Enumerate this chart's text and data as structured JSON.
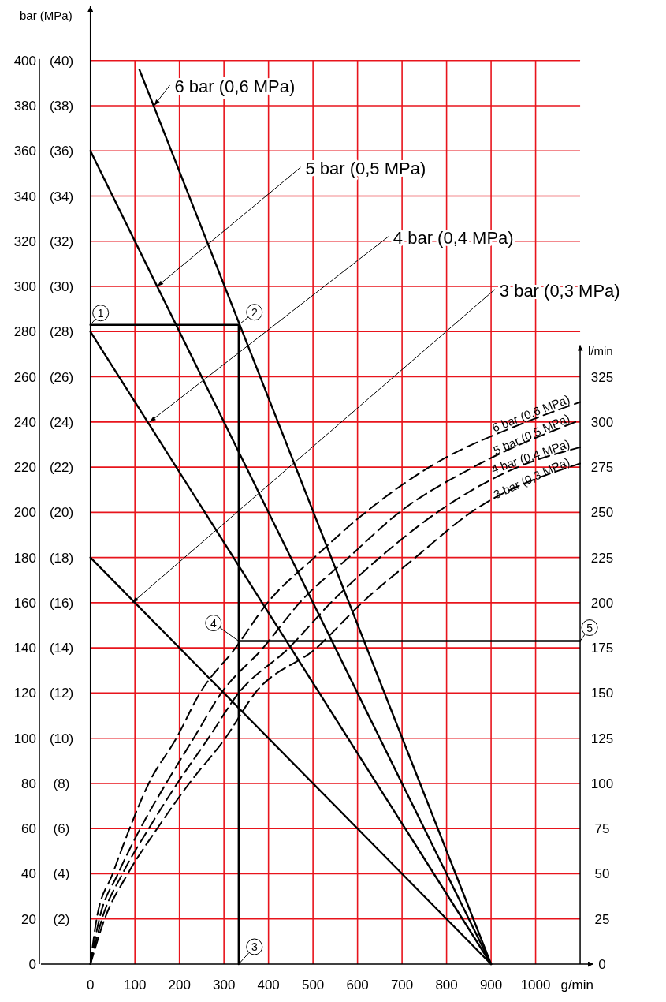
{
  "chart_data": {
    "type": "line",
    "xlabel": "g/min",
    "ylabel": "bar (MPa)",
    "y2label": "l/min",
    "xlim": [
      -111,
      1130
    ],
    "xticks": [
      0,
      100,
      200,
      300,
      400,
      500,
      600,
      700,
      800,
      900,
      1000
    ],
    "ylim": [
      0,
      424
    ],
    "yticks": [
      0,
      20,
      40,
      60,
      80,
      100,
      120,
      140,
      160,
      180,
      200,
      220,
      240,
      260,
      280,
      300,
      320,
      340,
      360,
      380,
      400
    ],
    "y3lim": [
      0,
      42.4
    ],
    "y3ticks": [
      {
        "value": 2,
        "label": "(2)"
      },
      {
        "value": 4,
        "label": "(4)"
      },
      {
        "value": 6,
        "label": "(6)"
      },
      {
        "value": 8,
        "label": "(8)"
      },
      {
        "value": 10,
        "label": "(10)"
      },
      {
        "value": 12,
        "label": "(12)"
      },
      {
        "value": 14,
        "label": "(14)"
      },
      {
        "value": 16,
        "label": "(16)"
      },
      {
        "value": 18,
        "label": "(18)"
      },
      {
        "value": 20,
        "label": "(20)"
      },
      {
        "value": 22,
        "label": "(22)"
      },
      {
        "value": 24,
        "label": "(24)"
      },
      {
        "value": 26,
        "label": "(26)"
      },
      {
        "value": 28,
        "label": "(28)"
      },
      {
        "value": 30,
        "label": "(30)"
      },
      {
        "value": 32,
        "label": "(32)"
      },
      {
        "value": 34,
        "label": "(34)"
      },
      {
        "value": 36,
        "label": "(36)"
      },
      {
        "value": 38,
        "label": "(38)"
      },
      {
        "value": 40,
        "label": "(40)"
      }
    ],
    "y2lim": [
      0,
      530
    ],
    "y2ticks": [
      0,
      25,
      50,
      75,
      100,
      125,
      150,
      175,
      200,
      225,
      250,
      275,
      300,
      325
    ],
    "grid": true,
    "line_style": "solid",
    "series": [
      {
        "color": "#000000",
        "x": [
          110,
          900
        ],
        "values": [
          396,
          0
        ]
      },
      {
        "color": "#000000",
        "x": [
          0,
          900
        ],
        "values": [
          360,
          0
        ]
      },
      {
        "color": "#000000",
        "x": [
          0,
          900
        ],
        "values": [
          280,
          0
        ]
      },
      {
        "color": "#000000",
        "x": [
          0,
          900
        ],
        "values": [
          180,
          0
        ]
      },
      {
        "color": "#000000",
        "x": [
          0,
          333,
          333
        ],
        "values": [
          283,
          283,
          0
        ]
      },
      {
        "color": "#000000",
        "x": [
          333,
          1100
        ],
        "values": [
          143,
          143
        ]
      },
      {
        "name": "6 bar (0,6 MPa)",
        "color": "#000000",
        "line_style": "dashed",
        "axis": "y2",
        "x": [
          0,
          14,
          50,
          88,
          131,
          193,
          246,
          326,
          398,
          503,
          618,
          761,
          979,
          1100
        ],
        "values": [
          0,
          25,
          50,
          75,
          100,
          125,
          150,
          175,
          200,
          225,
          250,
          275,
          300,
          311
        ]
      },
      {
        "name": "5 bar (0,5 MPa)",
        "color": "#000000",
        "line_style": "dashed",
        "axis": "y2",
        "x": [
          0,
          20,
          62,
          112,
          170,
          232,
          294,
          388,
          470,
          580,
          694,
          860,
          1100
        ],
        "values": [
          0,
          25,
          50,
          75,
          100,
          125,
          150,
          175,
          200,
          225,
          250,
          275,
          301
        ]
      },
      {
        "name": "4 bar (0,4 MPa)",
        "color": "#000000",
        "line_style": "dashed",
        "axis": "y2",
        "x": [
          0,
          26,
          72,
          131,
          195,
          265,
          333,
          446,
          540,
          650,
          779,
          960,
          1100
        ],
        "values": [
          0,
          25,
          50,
          75,
          100,
          125,
          150,
          175,
          200,
          225,
          250,
          275,
          286
        ]
      },
      {
        "name": "3 bar (0,3 MPa)",
        "color": "#000000",
        "line_style": "dashed",
        "axis": "y2",
        "x": [
          0,
          32,
          84,
          150,
          222,
          303,
          370,
          508,
          610,
          730,
          855,
          1100
        ],
        "values": [
          0,
          25,
          50,
          75,
          100,
          125,
          150,
          175,
          200,
          225,
          250,
          277
        ]
      }
    ],
    "annotations": [
      {
        "text": "6 bar (0,6 MPa)",
        "x": 143,
        "y": 380
      },
      {
        "text": "5 bar (0,5 MPa)",
        "x": 150,
        "y": 300
      },
      {
        "text": "4 bar (0,4 MPa)",
        "x": 133,
        "y": 240
      },
      {
        "text": "3 bar (0,3 MPa)",
        "x": 94,
        "y": 160
      },
      {
        "text": "1",
        "x": 0,
        "y": 283
      },
      {
        "text": "2",
        "x": 333,
        "y": 283
      },
      {
        "text": "3",
        "x": 333,
        "y": 0
      },
      {
        "text": "4",
        "x": 333,
        "y": 143
      },
      {
        "text": "5",
        "x": 1100,
        "y": 143
      }
    ]
  }
}
